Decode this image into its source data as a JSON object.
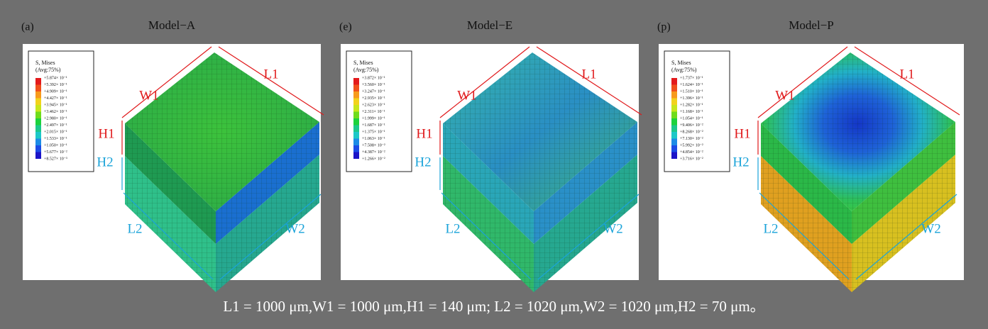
{
  "panels": [
    {
      "label": "(a)",
      "title": "Model−A",
      "legend": {
        "title": "S, Mises",
        "subtitle": "(Avg:75%)",
        "values": [
          "+5.874× 10⁻¹",
          "+5.392× 10⁻¹",
          "+4.909× 10⁻¹",
          "+4.427× 10⁻¹",
          "+3.945× 10⁻¹",
          "+3.462× 10⁻¹",
          "+2.980× 10⁻¹",
          "+2.497× 10⁻¹",
          "+2.015× 10⁻¹",
          "+1.533× 10⁻¹",
          "+1.050× 10⁻¹",
          "+5.677× 10⁻²",
          "+8.527× 10⁻³"
        ]
      },
      "dimensions": [
        "W1",
        "L1",
        "H1",
        "H2",
        "L2",
        "W2"
      ]
    },
    {
      "label": "(e)",
      "title": "Model−E",
      "legend": {
        "title": "S, Mises",
        "subtitle": "(Avg:75%)",
        "values": [
          "+3.872× 10⁻¹",
          "+3.560× 10⁻¹",
          "+3.247× 10⁻¹",
          "+2.935× 10⁻¹",
          "+2.623× 10⁻¹",
          "+2.311× 10⁻¹",
          "+1.999× 10⁻¹",
          "+1.687× 10⁻¹",
          "+1.375× 10⁻¹",
          "+1.063× 10⁻¹",
          "+7.508× 10⁻²",
          "+4.387× 10⁻²",
          "+1.266× 10⁻²"
        ]
      },
      "dimensions": [
        "W1",
        "L1",
        "H1",
        "H2",
        "L2",
        "W2"
      ]
    },
    {
      "label": "(p)",
      "title": "Model−P",
      "legend": {
        "title": "S, Mises",
        "subtitle": "(Avg:75%)",
        "values": [
          "+1.737× 10⁻¹",
          "+1.624× 10⁻¹",
          "+1.510× 10⁻¹",
          "+1.396× 10⁻¹",
          "+1.282× 10⁻¹",
          "+1.168× 10⁻¹",
          "+1.054× 10⁻¹",
          "+9.406× 10⁻²",
          "+8.268× 10⁻²",
          "+7.130× 10⁻²",
          "+5.992× 10⁻²",
          "+4.854× 10⁻²",
          "+3.716× 10⁻²"
        ]
      },
      "dimensions": [
        "W1",
        "L1",
        "H1",
        "H2",
        "L2",
        "W2"
      ]
    }
  ],
  "caption": "L1 = 1000 μm,W1 = 1000 μm,H1 = 140 μm; L2 = 1020 μm,W2 = 1020 μm,H2 = 70 μm。"
}
